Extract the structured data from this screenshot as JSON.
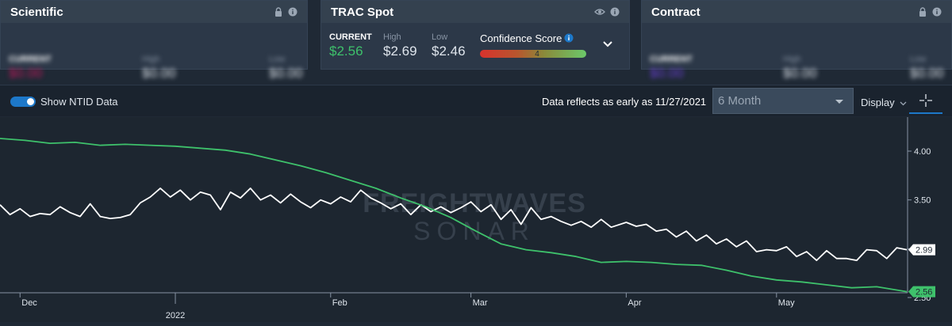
{
  "cards": [
    {
      "title": "Scientific",
      "icons": [
        "lock-icon",
        "info-icon"
      ],
      "current_label": "CURRENT",
      "current_value": "$0.00",
      "high_label": "High",
      "high_value": "$0.00",
      "low_label": "Low",
      "low_value": "$0.00",
      "blurred": true,
      "accent": "#c2185b"
    },
    {
      "title": "TRAC Spot",
      "icons": [
        "eye-icon",
        "info-icon"
      ],
      "current_label": "CURRENT",
      "current_value": "$2.56",
      "high_label": "High",
      "high_value": "$2.69",
      "low_label": "Low",
      "low_value": "$2.46",
      "confidence_label": "Confidence Score",
      "confidence_value": "4",
      "confidence_level": 0.8,
      "blurred": false,
      "accent": "#3ec16b"
    },
    {
      "title": "Contract",
      "icons": [
        "lock-icon",
        "info-icon"
      ],
      "current_label": "CURRENT",
      "current_value": "$0.00",
      "high_label": "High",
      "high_value": "$0.00",
      "low_label": "Low",
      "low_value": "$0.00",
      "blurred": true,
      "accent": "#6a3fd4"
    }
  ],
  "toolbar": {
    "toggle_label": "Show NTID Data",
    "toggle_on": true,
    "data_note": "Data reflects as early as 11/27/2021",
    "range_value": "6 Month",
    "display_label": "Display"
  },
  "watermark": {
    "line1": "FREIGHTWAVES",
    "line2": "SONAR"
  },
  "chart_data": {
    "type": "line",
    "x_start": "2021-11-27",
    "x_end": "2022-05-27",
    "x_ticks": [
      {
        "label": "Dec",
        "date": "2021-12-01"
      },
      {
        "label": "Feb",
        "date": "2022-02-01"
      },
      {
        "label": "Mar",
        "date": "2022-03-01"
      },
      {
        "label": "Apr",
        "date": "2022-04-01"
      },
      {
        "label": "May",
        "date": "2022-05-01"
      }
    ],
    "year_label": {
      "label": "2022",
      "date": "2022-01-01"
    },
    "y_ticks": [
      "2.50",
      "3.00",
      "3.50",
      "4.00"
    ],
    "ylim": [
      2.5,
      4.3
    ],
    "grid": false,
    "series": [
      {
        "color": "#ffffff",
        "last_label": "2.99",
        "points": [
          [
            "2021-11-27",
            3.45
          ],
          [
            "2021-11-29",
            3.35
          ],
          [
            "2021-12-01",
            3.41
          ],
          [
            "2021-12-03",
            3.33
          ],
          [
            "2021-12-05",
            3.36
          ],
          [
            "2021-12-07",
            3.35
          ],
          [
            "2021-12-09",
            3.43
          ],
          [
            "2021-12-11",
            3.37
          ],
          [
            "2021-12-13",
            3.33
          ],
          [
            "2021-12-15",
            3.46
          ],
          [
            "2021-12-17",
            3.33
          ],
          [
            "2021-12-19",
            3.31
          ],
          [
            "2021-12-21",
            3.32
          ],
          [
            "2021-12-23",
            3.35
          ],
          [
            "2021-12-25",
            3.47
          ],
          [
            "2021-12-27",
            3.53
          ],
          [
            "2021-12-29",
            3.62
          ],
          [
            "2021-12-31",
            3.53
          ],
          [
            "2022-01-02",
            3.6
          ],
          [
            "2022-01-04",
            3.5
          ],
          [
            "2022-01-06",
            3.58
          ],
          [
            "2022-01-08",
            3.55
          ],
          [
            "2022-01-10",
            3.4
          ],
          [
            "2022-01-12",
            3.58
          ],
          [
            "2022-01-14",
            3.52
          ],
          [
            "2022-01-16",
            3.62
          ],
          [
            "2022-01-18",
            3.5
          ],
          [
            "2022-01-20",
            3.55
          ],
          [
            "2022-01-22",
            3.47
          ],
          [
            "2022-01-24",
            3.56
          ],
          [
            "2022-01-26",
            3.48
          ],
          [
            "2022-01-28",
            3.42
          ],
          [
            "2022-01-30",
            3.5
          ],
          [
            "2022-02-01",
            3.46
          ],
          [
            "2022-02-03",
            3.53
          ],
          [
            "2022-02-05",
            3.48
          ],
          [
            "2022-02-07",
            3.6
          ],
          [
            "2022-02-09",
            3.52
          ],
          [
            "2022-02-11",
            3.47
          ],
          [
            "2022-02-13",
            3.41
          ],
          [
            "2022-02-15",
            3.46
          ],
          [
            "2022-02-17",
            3.35
          ],
          [
            "2022-02-19",
            3.45
          ],
          [
            "2022-02-21",
            3.38
          ],
          [
            "2022-02-23",
            3.43
          ],
          [
            "2022-02-25",
            3.37
          ],
          [
            "2022-02-27",
            3.42
          ],
          [
            "2022-03-01",
            3.48
          ],
          [
            "2022-03-03",
            3.38
          ],
          [
            "2022-03-05",
            3.45
          ],
          [
            "2022-03-07",
            3.3
          ],
          [
            "2022-03-09",
            3.4
          ],
          [
            "2022-03-11",
            3.25
          ],
          [
            "2022-03-13",
            3.42
          ],
          [
            "2022-03-15",
            3.3
          ],
          [
            "2022-03-17",
            3.33
          ],
          [
            "2022-03-19",
            3.28
          ],
          [
            "2022-03-21",
            3.24
          ],
          [
            "2022-03-23",
            3.28
          ],
          [
            "2022-03-25",
            3.22
          ],
          [
            "2022-03-27",
            3.3
          ],
          [
            "2022-03-29",
            3.22
          ],
          [
            "2022-04-01",
            3.27
          ],
          [
            "2022-04-03",
            3.23
          ],
          [
            "2022-04-05",
            3.25
          ],
          [
            "2022-04-07",
            3.18
          ],
          [
            "2022-04-09",
            3.2
          ],
          [
            "2022-04-11",
            3.12
          ],
          [
            "2022-04-13",
            3.18
          ],
          [
            "2022-04-15",
            3.08
          ],
          [
            "2022-04-17",
            3.14
          ],
          [
            "2022-04-19",
            3.05
          ],
          [
            "2022-04-21",
            3.1
          ],
          [
            "2022-04-23",
            3.02
          ],
          [
            "2022-04-25",
            3.08
          ],
          [
            "2022-04-27",
            2.97
          ],
          [
            "2022-04-29",
            2.99
          ],
          [
            "2022-05-01",
            2.98
          ],
          [
            "2022-05-03",
            3.02
          ],
          [
            "2022-05-05",
            2.92
          ],
          [
            "2022-05-07",
            2.97
          ],
          [
            "2022-05-09",
            2.88
          ],
          [
            "2022-05-11",
            2.98
          ],
          [
            "2022-05-13",
            2.9
          ],
          [
            "2022-05-15",
            2.9
          ],
          [
            "2022-05-17",
            2.88
          ],
          [
            "2022-05-19",
            2.99
          ],
          [
            "2022-05-21",
            2.98
          ],
          [
            "2022-05-23",
            2.9
          ],
          [
            "2022-05-25",
            3.01
          ],
          [
            "2022-05-27",
            2.99
          ]
        ]
      },
      {
        "color": "#3ec16b",
        "last_label": "2.56",
        "points": [
          [
            "2021-11-27",
            4.13
          ],
          [
            "2021-12-02",
            4.11
          ],
          [
            "2021-12-07",
            4.08
          ],
          [
            "2021-12-12",
            4.09
          ],
          [
            "2021-12-17",
            4.06
          ],
          [
            "2021-12-22",
            4.07
          ],
          [
            "2021-12-27",
            4.06
          ],
          [
            "2022-01-01",
            4.05
          ],
          [
            "2022-01-06",
            4.03
          ],
          [
            "2022-01-11",
            4.01
          ],
          [
            "2022-01-16",
            3.97
          ],
          [
            "2022-01-21",
            3.91
          ],
          [
            "2022-01-26",
            3.85
          ],
          [
            "2022-01-31",
            3.78
          ],
          [
            "2022-02-05",
            3.7
          ],
          [
            "2022-02-10",
            3.62
          ],
          [
            "2022-02-15",
            3.52
          ],
          [
            "2022-02-20",
            3.43
          ],
          [
            "2022-02-25",
            3.32
          ],
          [
            "2022-03-02",
            3.18
          ],
          [
            "2022-03-07",
            3.05
          ],
          [
            "2022-03-12",
            2.99
          ],
          [
            "2022-03-17",
            2.96
          ],
          [
            "2022-03-22",
            2.92
          ],
          [
            "2022-03-27",
            2.86
          ],
          [
            "2022-04-01",
            2.87
          ],
          [
            "2022-04-06",
            2.86
          ],
          [
            "2022-04-11",
            2.84
          ],
          [
            "2022-04-16",
            2.83
          ],
          [
            "2022-04-21",
            2.78
          ],
          [
            "2022-04-26",
            2.72
          ],
          [
            "2022-05-01",
            2.68
          ],
          [
            "2022-05-06",
            2.66
          ],
          [
            "2022-05-11",
            2.63
          ],
          [
            "2022-05-16",
            2.6
          ],
          [
            "2022-05-21",
            2.61
          ],
          [
            "2022-05-27",
            2.56
          ]
        ]
      }
    ]
  }
}
